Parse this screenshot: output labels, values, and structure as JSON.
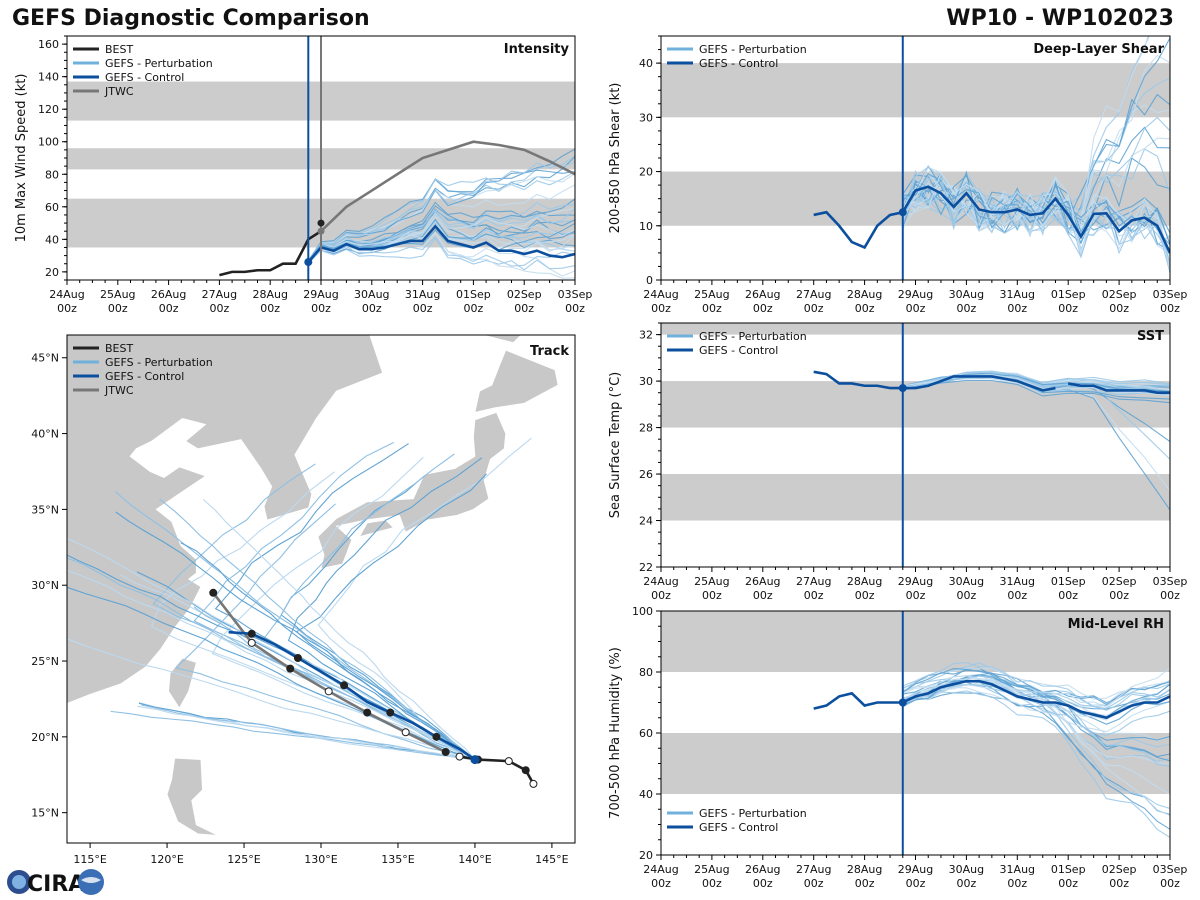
{
  "header": {
    "title": "GEFS Diagnostic Comparison",
    "storm": "WP10 - WP102023"
  },
  "logo": {
    "text": "CIRA"
  },
  "colors": {
    "best": "#222222",
    "perturbation": "#6fb0dc",
    "control": "#0b4f9e",
    "jtwc": "#777777",
    "band": "#cccccc",
    "land": "#c8c8c8"
  },
  "time_axis": {
    "labels": [
      "24Aug",
      "25Aug",
      "26Aug",
      "27Aug",
      "28Aug",
      "29Aug",
      "30Aug",
      "31Aug",
      "01Sep",
      "02Sep",
      "03Sep"
    ],
    "sublabel": "00z",
    "init_day": 4.75,
    "jtwc_day": 5.0
  },
  "chart_data": [
    {
      "id": "intensity",
      "type": "line",
      "title": "Intensity",
      "ylabel": "10m Max Wind Speed (kt)",
      "ylim": [
        15,
        165
      ],
      "yticks": [
        20,
        40,
        60,
        80,
        100,
        120,
        140,
        160
      ],
      "bands": [
        [
          35,
          65
        ],
        [
          83,
          96
        ],
        [
          113,
          137
        ]
      ],
      "legend": [
        "BEST",
        "GEFS - Perturbation",
        "GEFS - Control",
        "JTWC"
      ],
      "series": [
        {
          "name": "BEST",
          "x": [
            3.0,
            3.25,
            3.5,
            3.75,
            4.0,
            4.25,
            4.5,
            4.75,
            5.0
          ],
          "y": [
            18,
            20,
            20,
            21,
            21,
            25,
            25,
            40,
            45
          ]
        },
        {
          "name": "JTWC",
          "x": [
            5.0,
            5.5,
            6.0,
            6.5,
            7.0,
            7.5,
            8.0,
            8.5,
            9.0,
            9.5,
            10.0
          ],
          "y": [
            45,
            60,
            70,
            80,
            90,
            95,
            100,
            98,
            95,
            88,
            80
          ]
        },
        {
          "name": "GEFS - Control",
          "x": [
            4.75,
            5.0,
            5.25,
            5.5,
            5.75,
            6.0,
            6.25,
            6.5,
            6.75,
            7.0,
            7.25,
            7.5,
            7.75,
            8.0,
            8.25,
            8.5,
            8.75,
            9.0,
            9.25,
            9.5,
            9.75,
            10.0
          ],
          "y": [
            26,
            35,
            33,
            37,
            34,
            34,
            35,
            37,
            39,
            39,
            48,
            39,
            37,
            35,
            38,
            33,
            33,
            31,
            33,
            30,
            29,
            31
          ]
        }
      ]
    },
    {
      "id": "shear",
      "type": "line",
      "title": "Deep-Layer Shear",
      "ylabel": "200-850 hPa Shear (kt)",
      "ylim": [
        0,
        45
      ],
      "yticks": [
        0,
        10,
        20,
        30,
        40
      ],
      "bands": [
        [
          10,
          20
        ],
        [
          30,
          40
        ]
      ],
      "legend": [
        "GEFS - Perturbation",
        "GEFS - Control"
      ],
      "series": [
        {
          "name": "GEFS - Control (analysis)",
          "x": [
            3.0,
            3.25,
            3.5,
            3.75,
            4.0,
            4.25,
            4.5,
            4.75
          ],
          "y": [
            12,
            12.5,
            10,
            7,
            6,
            10,
            12,
            12.5
          ]
        },
        {
          "name": "GEFS - Control",
          "x": [
            4.75,
            5.0,
            5.25,
            5.5,
            5.75,
            6.0,
            6.25,
            6.5,
            6.75,
            7.0,
            7.25,
            7.5,
            7.75,
            8.0,
            8.25,
            8.5,
            8.75,
            9.0,
            9.25,
            9.5,
            9.75,
            10.0
          ],
          "y": [
            12.5,
            16.5,
            17.2,
            16,
            13.5,
            16,
            13,
            12.5,
            12.5,
            13,
            12,
            12.3,
            15,
            12,
            8,
            12.2,
            12.3,
            9,
            11,
            11.5,
            10,
            5
          ]
        }
      ]
    },
    {
      "id": "sst",
      "type": "line",
      "title": "SST",
      "ylabel": "Sea Surface Temp (°C)",
      "ylim": [
        22,
        32.5
      ],
      "yticks": [
        22,
        24,
        26,
        28,
        30,
        32
      ],
      "bands": [
        [
          24,
          26
        ],
        [
          28,
          30
        ],
        [
          32,
          32.5
        ]
      ],
      "legend": [
        "GEFS - Perturbation",
        "GEFS - Control"
      ],
      "series": [
        {
          "name": "GEFS - Control",
          "x": [
            3.0,
            3.25,
            3.5,
            3.75,
            4.0,
            4.25,
            4.5,
            4.75,
            5.0,
            5.25,
            5.5,
            5.75,
            6.0,
            6.25,
            6.5,
            6.75,
            7.0,
            7.25,
            7.5,
            7.75
          ],
          "y": [
            30.4,
            30.3,
            29.9,
            29.9,
            29.8,
            29.8,
            29.7,
            29.7,
            29.7,
            29.8,
            30.0,
            30.2,
            30.2,
            30.2,
            30.2,
            30.1,
            30.0,
            29.8,
            29.6,
            29.7
          ]
        },
        {
          "name": "GEFS - Control (late)",
          "x": [
            8.0,
            8.25,
            8.5,
            8.75,
            9.0,
            9.25,
            9.5,
            9.75,
            10.0
          ],
          "y": [
            29.9,
            29.8,
            29.8,
            29.6,
            29.6,
            29.6,
            29.6,
            29.5,
            29.5
          ]
        }
      ]
    },
    {
      "id": "rh",
      "type": "line",
      "title": "Mid-Level RH",
      "ylabel": "700-500 hPa Humidity (%)",
      "ylim": [
        20,
        100
      ],
      "yticks": [
        20,
        40,
        60,
        80,
        100
      ],
      "bands": [
        [
          40,
          60
        ],
        [
          80,
          100
        ]
      ],
      "legend": [
        "GEFS - Perturbation",
        "GEFS - Control"
      ],
      "series": [
        {
          "name": "GEFS - Control (analysis)",
          "x": [
            3.0,
            3.25,
            3.5,
            3.75,
            4.0,
            4.25,
            4.5,
            4.75
          ],
          "y": [
            68,
            69,
            72,
            73,
            69,
            70,
            70,
            70
          ]
        },
        {
          "name": "GEFS - Control",
          "x": [
            4.75,
            5.0,
            5.25,
            5.5,
            5.75,
            6.0,
            6.25,
            6.5,
            6.75,
            7.0,
            7.25,
            7.5,
            7.75,
            8.0,
            8.25,
            8.5,
            8.75,
            9.0,
            9.25,
            9.5,
            9.75,
            10.0
          ],
          "y": [
            70,
            72,
            73,
            75,
            76,
            77,
            77,
            76,
            74,
            72,
            71,
            70,
            70,
            69,
            67,
            66,
            65,
            67,
            69,
            70,
            70,
            72
          ]
        }
      ]
    },
    {
      "id": "track",
      "type": "scatter",
      "title": "Track",
      "xlim": [
        113.5,
        146.5
      ],
      "ylim": [
        13,
        46.5
      ],
      "xticks": [
        115,
        120,
        125,
        130,
        135,
        140,
        145
      ],
      "yticks": [
        15,
        20,
        25,
        30,
        35,
        40,
        45
      ],
      "xtick_labels": [
        "115°E",
        "120°E",
        "125°E",
        "130°E",
        "135°E",
        "140°E",
        "145°E"
      ],
      "ytick_labels": [
        "15°N",
        "20°N",
        "25°N",
        "30°N",
        "35°N",
        "40°N",
        "45°N"
      ],
      "legend": [
        "BEST",
        "GEFS - Perturbation",
        "GEFS - Control",
        "JTWC"
      ],
      "series": [
        {
          "name": "BEST",
          "x": [
            143.8,
            143.3,
            142.2,
            140.2,
            139.0
          ],
          "y": [
            16.9,
            17.8,
            18.4,
            18.5,
            18.7
          ]
        },
        {
          "name": "JTWC",
          "x": [
            138.1,
            135.5,
            133.0,
            130.5,
            128.0,
            125.5,
            123.0
          ],
          "y": [
            19.0,
            20.3,
            21.6,
            23.0,
            24.5,
            26.2,
            29.5
          ]
        },
        {
          "name": "GEFS - Control",
          "x": [
            140.0,
            139.0,
            137.5,
            136.0,
            134.5,
            133.0,
            131.5,
            130.0,
            128.5,
            127.0,
            125.5,
            124.0
          ],
          "y": [
            18.5,
            19.2,
            20.0,
            20.9,
            21.6,
            22.3,
            23.4,
            24.3,
            25.2,
            26.1,
            26.8,
            26.9
          ]
        }
      ]
    }
  ]
}
